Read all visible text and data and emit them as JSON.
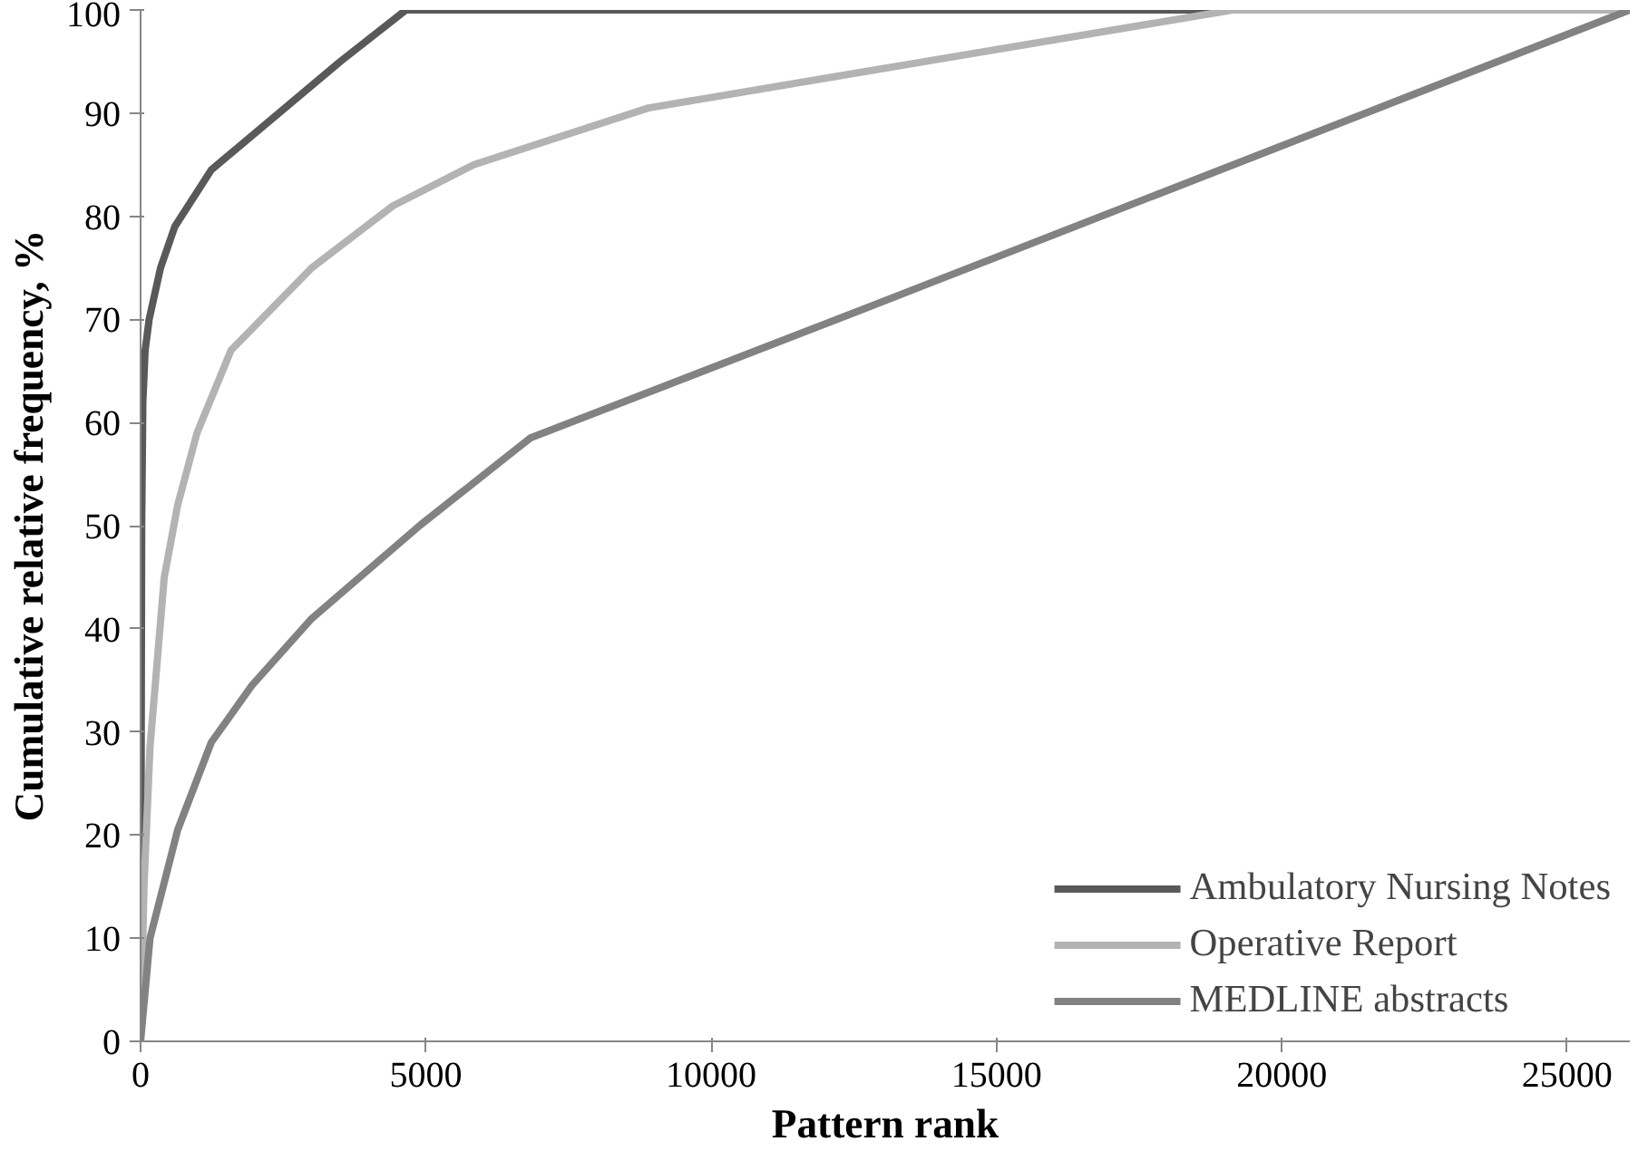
{
  "chart_data": {
    "type": "line",
    "xlabel": "Pattern rank",
    "ylabel": "Cumulative relative frequency, %",
    "xlim": [
      0,
      26100
    ],
    "ylim": [
      0,
      100
    ],
    "xticks": [
      0,
      5000,
      10000,
      15000,
      20000,
      25000
    ],
    "yticks": [
      0,
      10,
      20,
      30,
      40,
      50,
      60,
      70,
      80,
      90,
      100
    ],
    "grid": false,
    "legend": "bottom right",
    "marker": "none",
    "line_style": "solid",
    "series": [
      {
        "name": "Ambulatory Nursing Notes",
        "color": "#595959",
        "x": [
          0,
          20,
          40,
          80,
          150,
          350,
          600,
          1240,
          3500,
          4650,
          26100
        ],
        "values": [
          0,
          50,
          62,
          67,
          70,
          75,
          79,
          84.5,
          95,
          100,
          100
        ]
      },
      {
        "name": "Operative Report",
        "color": "#b3b3b3",
        "x": [
          0,
          60,
          165,
          415,
          650,
          990,
          1585,
          3000,
          4420,
          5840,
          8900,
          12670,
          19140,
          26100
        ],
        "values": [
          0,
          15,
          28.5,
          45,
          52,
          59,
          67,
          75,
          81,
          85,
          90.5,
          94,
          100,
          100
        ]
      },
      {
        "name": "MEDLINE abstracts",
        "color": "#828282",
        "x": [
          0,
          165,
          650,
          1240,
          1950,
          3000,
          4890,
          6830,
          12670,
          26100
        ],
        "values": [
          0,
          10,
          20.5,
          29,
          34.5,
          41,
          50,
          58.5,
          71,
          100
        ]
      }
    ]
  }
}
